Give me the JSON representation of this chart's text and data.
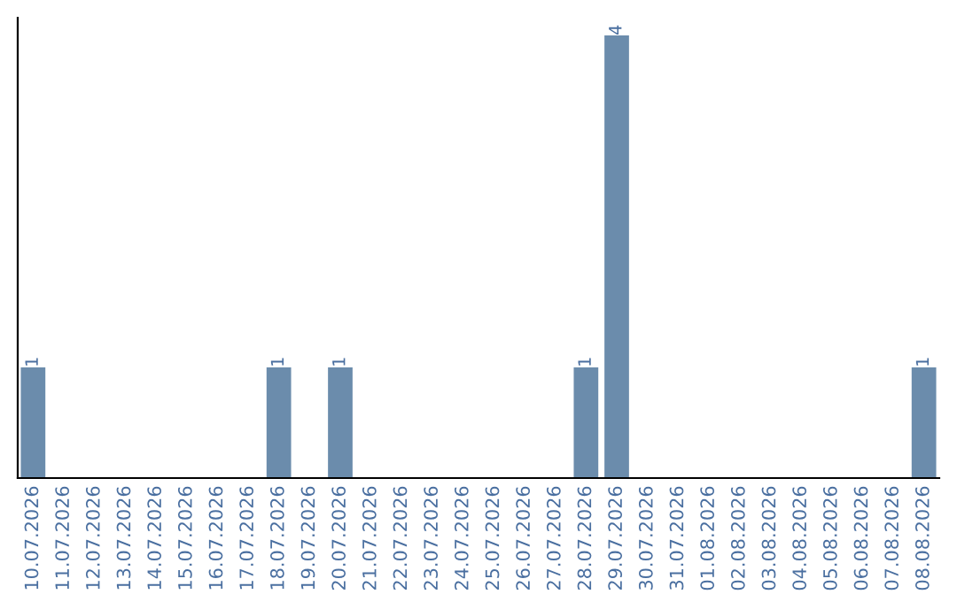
{
  "chart_data": {
    "type": "bar",
    "categories": [
      "10.07.2026",
      "11.07.2026",
      "12.07.2026",
      "13.07.2026",
      "14.07.2026",
      "15.07.2026",
      "16.07.2026",
      "17.07.2026",
      "18.07.2026",
      "19.07.2026",
      "20.07.2026",
      "21.07.2026",
      "22.07.2026",
      "23.07.2026",
      "24.07.2026",
      "25.07.2026",
      "26.07.2026",
      "27.07.2026",
      "28.07.2026",
      "29.07.2026",
      "30.07.2026",
      "31.07.2026",
      "01.08.2026",
      "02.08.2026",
      "03.08.2026",
      "04.08.2026",
      "05.08.2026",
      "06.08.2026",
      "07.08.2026",
      "08.08.2026"
    ],
    "values": [
      1,
      null,
      null,
      null,
      null,
      null,
      null,
      null,
      1,
      null,
      1,
      null,
      null,
      null,
      null,
      null,
      null,
      null,
      1,
      4,
      null,
      null,
      null,
      null,
      null,
      null,
      null,
      null,
      null,
      1
    ],
    "value_labels": [
      "1",
      null,
      null,
      null,
      null,
      null,
      null,
      null,
      "1",
      null,
      "1",
      null,
      null,
      null,
      null,
      null,
      null,
      null,
      "1",
      "4",
      null,
      null,
      null,
      null,
      null,
      null,
      null,
      null,
      null,
      "1"
    ],
    "color": "#6b8cac"
  }
}
